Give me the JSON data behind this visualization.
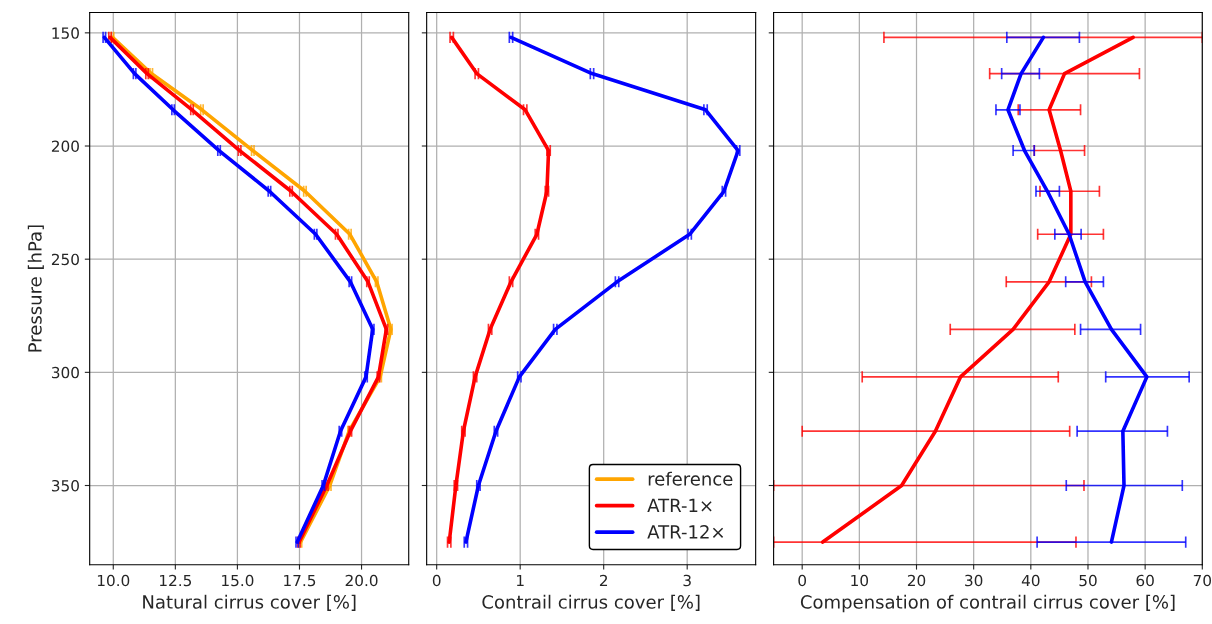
{
  "chart_data": [
    {
      "type": "line",
      "xlabel": "Natural cirrus cover [%]",
      "ylabel": "Pressure [hPa]",
      "xlim": [
        9.05,
        21.9
      ],
      "ylim": [
        385,
        141
      ],
      "xticks": [
        {
          "value": 10,
          "label": "10.0"
        },
        {
          "value": 12.5,
          "label": "12.5"
        },
        {
          "value": 15,
          "label": "15.0"
        },
        {
          "value": 17.5,
          "label": "17.5"
        },
        {
          "value": 20,
          "label": "20.0"
        }
      ],
      "yticks": [
        150,
        200,
        250,
        300,
        350
      ],
      "grid": true,
      "legend": "bottom right",
      "series": [
        {
          "name": "reference",
          "color": "#ffa500",
          "x": [
            9.97,
            11.53,
            13.57,
            15.62,
            17.72,
            19.53,
            20.61,
            21.18,
            20.75,
            19.5,
            18.72,
            17.54
          ],
          "values": [
            152,
            168,
            184,
            202,
            220,
            239,
            260,
            281,
            302,
            326,
            350,
            375
          ],
          "xerrors": [
            0.05,
            0.05,
            0.05,
            0.05,
            0.05,
            0.05,
            0.05,
            0.05,
            0.05,
            0.05,
            0.05,
            0.05
          ]
        },
        {
          "name": "ATR-1×",
          "color": "#ff0000",
          "x": [
            9.87,
            11.36,
            13.17,
            15.09,
            17.16,
            19.0,
            20.26,
            21.0,
            20.68,
            19.55,
            18.6,
            17.48
          ],
          "values": [
            152,
            168,
            184,
            202,
            220,
            239,
            260,
            281,
            302,
            326,
            350,
            375
          ],
          "xerrors": [
            0.05,
            0.05,
            0.05,
            0.05,
            0.05,
            0.05,
            0.05,
            0.05,
            0.05,
            0.05,
            0.05,
            0.05
          ]
        },
        {
          "name": "ATR-12×",
          "color": "#0000ff",
          "x": [
            9.64,
            10.86,
            12.41,
            14.26,
            16.29,
            18.15,
            19.55,
            20.45,
            20.18,
            19.15,
            18.46,
            17.41
          ],
          "values": [
            152,
            168,
            184,
            202,
            220,
            239,
            260,
            281,
            302,
            326,
            350,
            375
          ],
          "xerrors": [
            0.05,
            0.05,
            0.05,
            0.05,
            0.05,
            0.05,
            0.05,
            0.05,
            0.05,
            0.05,
            0.05,
            0.05
          ]
        }
      ]
    },
    {
      "type": "line",
      "xlabel": "Contrail cirrus cover [%]",
      "xlim": [
        -0.12,
        3.82
      ],
      "ylim": [
        385,
        141
      ],
      "xticks": [
        0,
        1,
        2,
        3
      ],
      "yticks": [
        150,
        200,
        250,
        300,
        350
      ],
      "grid": true,
      "tick_labels": "x",
      "series": [
        {
          "color": "#ff0000",
          "x": [
            0.18,
            0.48,
            1.06,
            1.34,
            1.32,
            1.2,
            0.89,
            0.64,
            0.46,
            0.32,
            0.23,
            0.15
          ],
          "values": [
            152,
            168,
            184,
            202,
            220,
            239,
            260,
            281,
            302,
            326,
            350,
            375
          ],
          "xerrors": [
            0.02,
            0.02,
            0.02,
            0.02,
            0.02,
            0.02,
            0.02,
            0.02,
            0.02,
            0.02,
            0.02,
            0.02
          ]
        },
        {
          "color": "#0000ff",
          "x": [
            0.89,
            1.86,
            3.22,
            3.61,
            3.44,
            3.03,
            2.16,
            1.42,
            0.99,
            0.71,
            0.5,
            0.35
          ],
          "values": [
            152,
            168,
            184,
            202,
            220,
            239,
            260,
            281,
            302,
            326,
            350,
            375
          ],
          "xerrors": [
            0.02,
            0.02,
            0.02,
            0.02,
            0.02,
            0.02,
            0.02,
            0.02,
            0.02,
            0.02,
            0.02,
            0.02
          ]
        }
      ]
    },
    {
      "type": "line",
      "xlabel": "Compensation of contrail cirrus cover [%]",
      "xlim": [
        -5,
        70
      ],
      "ylim": [
        385,
        141
      ],
      "xticks": [
        0,
        10,
        20,
        30,
        40,
        50,
        60,
        70
      ],
      "yticks": [
        150,
        200,
        250,
        300,
        350
      ],
      "grid": true,
      "tick_labels": "x",
      "series": [
        {
          "color": "#ff0000",
          "x": [
            57.9,
            45.9,
            43.2,
            45.2,
            47.0,
            47.0,
            43.2,
            36.9,
            27.7,
            23.3,
            17.4,
            3.6
          ],
          "values": [
            152,
            168,
            184,
            202,
            220,
            239,
            260,
            281,
            302,
            326,
            350,
            375
          ],
          "xerrors": [
            [
              14.3,
              70
            ],
            [
              32.8,
              59.0
            ],
            [
              37.8,
              48.7
            ],
            [
              40.6,
              49.4
            ],
            [
              41.6,
              52.0
            ],
            [
              41.2,
              52.7
            ],
            [
              35.7,
              50.6
            ],
            [
              25.9,
              47.7
            ],
            [
              10.5,
              44.8
            ],
            [
              0,
              46.8
            ],
            [
              -5,
              49.3
            ],
            [
              -5,
              47.9
            ]
          ]
        },
        {
          "color": "#0000ff",
          "x": [
            42.2,
            38.3,
            36.0,
            38.9,
            42.9,
            46.7,
            49.5,
            54.1,
            60.3,
            56.1,
            56.3,
            54.1
          ],
          "values": [
            152,
            168,
            184,
            202,
            220,
            239,
            260,
            281,
            302,
            326,
            350,
            375
          ],
          "xerrors": [
            [
              35.8,
              48.5
            ],
            [
              34.9,
              41.5
            ],
            [
              33.9,
              38.1
            ],
            [
              36.9,
              40.6
            ],
            [
              40.9,
              45.0
            ],
            [
              44.2,
              48.8
            ],
            [
              46.1,
              52.7
            ],
            [
              48.7,
              59.2
            ],
            [
              53.1,
              67.7
            ],
            [
              48.1,
              63.9
            ],
            [
              46.2,
              66.5
            ],
            [
              41.1,
              67.1
            ]
          ]
        }
      ]
    }
  ]
}
